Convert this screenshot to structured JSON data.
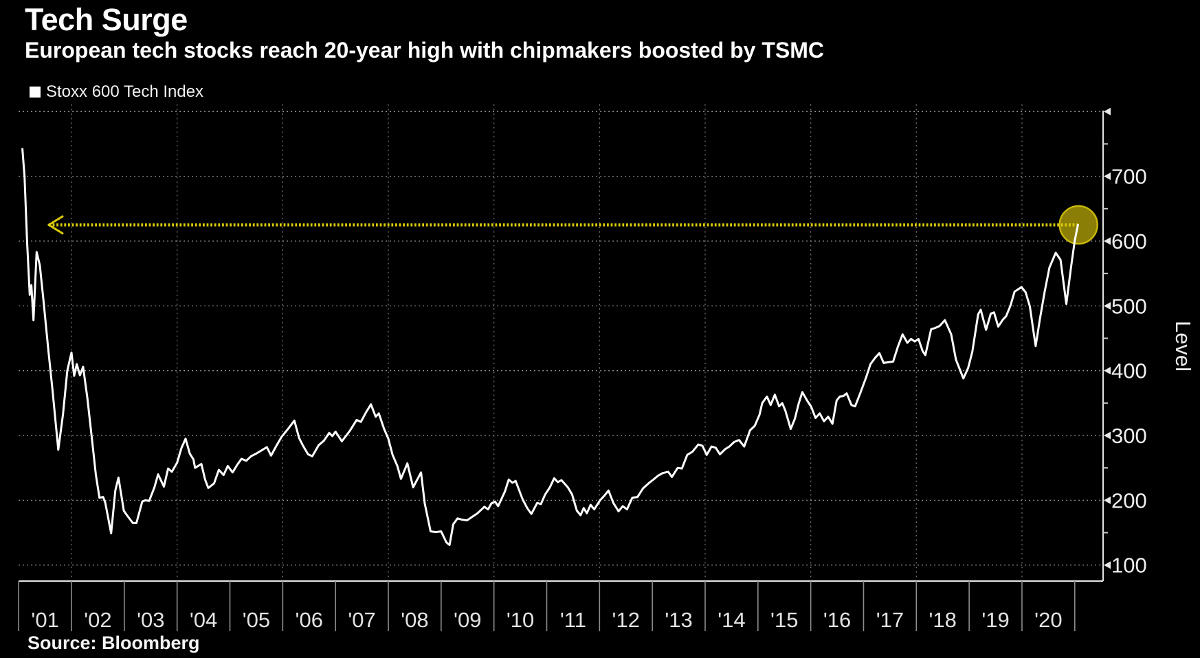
{
  "header": {
    "title": "Tech Surge",
    "subtitle": "European tech stocks reach 20-year high with chipmakers boosted by TSMC"
  },
  "legend": {
    "label": "Stoxx 600 Tech Index",
    "marker_color": "#ffffff"
  },
  "source": {
    "text": "Source: Bloomberg"
  },
  "colors": {
    "background": "#000000",
    "series_line": "#ffffff",
    "annotation_yellow": "#d9c908",
    "annotation_circle_fill": "#8b7e06",
    "annotation_circle_stroke": "#c9b90a",
    "grid": "#9a9a9a",
    "axis": "#e0e0e0"
  },
  "chart_data": {
    "type": "line",
    "title": "Tech Surge",
    "subtitle": "European tech stocks reach 20-year high with chipmakers boosted by TSMC",
    "ylabel": "Level",
    "xlabel": "",
    "grid": "dotted",
    "legend_position": "top-left",
    "x_axis_years_range": [
      2001.0,
      2021.55
    ],
    "ylim_value_at_axis": [
      75,
      800
    ],
    "y_major_ticks": [
      100,
      200,
      300,
      400,
      500,
      600,
      700
    ],
    "y_unlabeled_gridlines": [
      800
    ],
    "y_minor_ticks": [
      150,
      250,
      350,
      450,
      550,
      650,
      750
    ],
    "x_tick_labels": [
      "'01",
      "'02",
      "'03",
      "'04",
      "'05",
      "'06",
      "'07",
      "'08",
      "'09",
      "'10",
      "'11",
      "'12",
      "'13",
      "'14",
      "'15",
      "'16",
      "'17",
      "'18",
      "'19",
      "'20"
    ],
    "x_gridline_years": [
      2002,
      2004,
      2006,
      2008,
      2010,
      2012,
      2014,
      2016,
      2018,
      2020
    ],
    "annotation": {
      "description": "dotted arrow from latest value back to the 2001 level it last reached",
      "level": 625,
      "from_year": 2021.07,
      "tip_year": 2001.57,
      "marker": {
        "year": 2021.07,
        "value": 625,
        "radius_px": 27.5
      }
    },
    "series": [
      {
        "name": "Stoxx 600 Tech Index",
        "color": "#ffffff",
        "points": [
          [
            2001.07,
            742
          ],
          [
            2001.11,
            700
          ],
          [
            2001.16,
            597
          ],
          [
            2001.21,
            517
          ],
          [
            2001.24,
            532
          ],
          [
            2001.28,
            478
          ],
          [
            2001.34,
            583
          ],
          [
            2001.4,
            563
          ],
          [
            2001.47,
            508
          ],
          [
            2001.56,
            433
          ],
          [
            2001.64,
            370
          ],
          [
            2001.75,
            278
          ],
          [
            2001.84,
            333
          ],
          [
            2001.92,
            400
          ],
          [
            2002.0,
            428
          ],
          [
            2002.05,
            392
          ],
          [
            2002.1,
            410
          ],
          [
            2002.16,
            393
          ],
          [
            2002.22,
            406
          ],
          [
            2002.3,
            358
          ],
          [
            2002.38,
            300
          ],
          [
            2002.46,
            240
          ],
          [
            2002.53,
            204
          ],
          [
            2002.6,
            205
          ],
          [
            2002.64,
            196
          ],
          [
            2002.75,
            149
          ],
          [
            2002.83,
            215
          ],
          [
            2002.89,
            235
          ],
          [
            2002.99,
            184
          ],
          [
            2003.05,
            177
          ],
          [
            2003.16,
            165
          ],
          [
            2003.23,
            165
          ],
          [
            2003.34,
            198
          ],
          [
            2003.4,
            200
          ],
          [
            2003.47,
            199
          ],
          [
            2003.57,
            220
          ],
          [
            2003.64,
            240
          ],
          [
            2003.75,
            221
          ],
          [
            2003.83,
            249
          ],
          [
            2003.9,
            244
          ],
          [
            2004.0,
            258
          ],
          [
            2004.08,
            280
          ],
          [
            2004.16,
            295
          ],
          [
            2004.24,
            272
          ],
          [
            2004.31,
            263
          ],
          [
            2004.34,
            250
          ],
          [
            2004.46,
            256
          ],
          [
            2004.53,
            232
          ],
          [
            2004.59,
            219
          ],
          [
            2004.7,
            226
          ],
          [
            2004.79,
            247
          ],
          [
            2004.88,
            239
          ],
          [
            2004.96,
            253
          ],
          [
            2005.05,
            243
          ],
          [
            2005.14,
            255
          ],
          [
            2005.22,
            264
          ],
          [
            2005.31,
            261
          ],
          [
            2005.4,
            268
          ],
          [
            2005.5,
            272
          ],
          [
            2005.6,
            277
          ],
          [
            2005.7,
            282
          ],
          [
            2005.78,
            269
          ],
          [
            2005.88,
            284
          ],
          [
            2005.98,
            298
          ],
          [
            2006.1,
            310
          ],
          [
            2006.22,
            323
          ],
          [
            2006.31,
            296
          ],
          [
            2006.38,
            285
          ],
          [
            2006.48,
            271
          ],
          [
            2006.56,
            268
          ],
          [
            2006.68,
            285
          ],
          [
            2006.78,
            292
          ],
          [
            2006.88,
            304
          ],
          [
            2006.94,
            299
          ],
          [
            2007.0,
            306
          ],
          [
            2007.12,
            291
          ],
          [
            2007.27,
            307
          ],
          [
            2007.4,
            324
          ],
          [
            2007.48,
            321
          ],
          [
            2007.58,
            336
          ],
          [
            2007.67,
            348
          ],
          [
            2007.76,
            329
          ],
          [
            2007.82,
            334
          ],
          [
            2007.92,
            310
          ],
          [
            2008.0,
            295
          ],
          [
            2008.08,
            270
          ],
          [
            2008.17,
            253
          ],
          [
            2008.24,
            233
          ],
          [
            2008.36,
            257
          ],
          [
            2008.47,
            220
          ],
          [
            2008.62,
            243
          ],
          [
            2008.69,
            195
          ],
          [
            2008.8,
            152
          ],
          [
            2008.9,
            151
          ],
          [
            2009.0,
            152
          ],
          [
            2009.1,
            135
          ],
          [
            2009.16,
            131
          ],
          [
            2009.23,
            163
          ],
          [
            2009.31,
            172
          ],
          [
            2009.4,
            170
          ],
          [
            2009.49,
            169
          ],
          [
            2009.6,
            175
          ],
          [
            2009.69,
            180
          ],
          [
            2009.82,
            190
          ],
          [
            2009.89,
            186
          ],
          [
            2009.95,
            195
          ],
          [
            2010.02,
            198
          ],
          [
            2010.08,
            191
          ],
          [
            2010.21,
            214
          ],
          [
            2010.28,
            232
          ],
          [
            2010.35,
            227
          ],
          [
            2010.41,
            230
          ],
          [
            2010.54,
            202
          ],
          [
            2010.63,
            188
          ],
          [
            2010.71,
            179
          ],
          [
            2010.82,
            196
          ],
          [
            2010.89,
            194
          ],
          [
            2010.97,
            209
          ],
          [
            2011.06,
            220
          ],
          [
            2011.14,
            234
          ],
          [
            2011.21,
            228
          ],
          [
            2011.28,
            231
          ],
          [
            2011.4,
            220
          ],
          [
            2011.48,
            209
          ],
          [
            2011.57,
            184
          ],
          [
            2011.64,
            177
          ],
          [
            2011.7,
            188
          ],
          [
            2011.76,
            180
          ],
          [
            2011.83,
            193
          ],
          [
            2011.9,
            186
          ],
          [
            2012.01,
            200
          ],
          [
            2012.09,
            207
          ],
          [
            2012.17,
            215
          ],
          [
            2012.26,
            196
          ],
          [
            2012.36,
            183
          ],
          [
            2012.44,
            191
          ],
          [
            2012.52,
            186
          ],
          [
            2012.62,
            204
          ],
          [
            2012.72,
            205
          ],
          [
            2012.82,
            218
          ],
          [
            2012.94,
            227
          ],
          [
            2013.02,
            232
          ],
          [
            2013.11,
            238
          ],
          [
            2013.2,
            242
          ],
          [
            2013.3,
            244
          ],
          [
            2013.37,
            236
          ],
          [
            2013.48,
            250
          ],
          [
            2013.56,
            249
          ],
          [
            2013.66,
            270
          ],
          [
            2013.76,
            275
          ],
          [
            2013.87,
            286
          ],
          [
            2013.95,
            284
          ],
          [
            2014.03,
            270
          ],
          [
            2014.12,
            283
          ],
          [
            2014.2,
            281
          ],
          [
            2014.28,
            271
          ],
          [
            2014.38,
            279
          ],
          [
            2014.46,
            283
          ],
          [
            2014.55,
            290
          ],
          [
            2014.64,
            293
          ],
          [
            2014.74,
            283
          ],
          [
            2014.85,
            308
          ],
          [
            2014.94,
            315
          ],
          [
            2015.03,
            332
          ],
          [
            2015.08,
            350
          ],
          [
            2015.17,
            360
          ],
          [
            2015.24,
            347
          ],
          [
            2015.32,
            363
          ],
          [
            2015.4,
            345
          ],
          [
            2015.46,
            350
          ],
          [
            2015.52,
            338
          ],
          [
            2015.62,
            310
          ],
          [
            2015.7,
            326
          ],
          [
            2015.77,
            349
          ],
          [
            2015.84,
            367
          ],
          [
            2015.93,
            354
          ],
          [
            2016.01,
            344
          ],
          [
            2016.09,
            327
          ],
          [
            2016.17,
            334
          ],
          [
            2016.25,
            322
          ],
          [
            2016.33,
            329
          ],
          [
            2016.41,
            318
          ],
          [
            2016.49,
            354
          ],
          [
            2016.55,
            360
          ],
          [
            2016.62,
            361
          ],
          [
            2016.68,
            365
          ],
          [
            2016.77,
            347
          ],
          [
            2016.84,
            345
          ],
          [
            2016.94,
            366
          ],
          [
            2017.05,
            390
          ],
          [
            2017.13,
            410
          ],
          [
            2017.22,
            420
          ],
          [
            2017.3,
            427
          ],
          [
            2017.38,
            412
          ],
          [
            2017.47,
            413
          ],
          [
            2017.56,
            414
          ],
          [
            2017.65,
            437
          ],
          [
            2017.74,
            456
          ],
          [
            2017.83,
            443
          ],
          [
            2017.9,
            449
          ],
          [
            2017.97,
            445
          ],
          [
            2018.04,
            449
          ],
          [
            2018.12,
            430
          ],
          [
            2018.17,
            424
          ],
          [
            2018.28,
            464
          ],
          [
            2018.36,
            466
          ],
          [
            2018.44,
            469
          ],
          [
            2018.54,
            478
          ],
          [
            2018.66,
            456
          ],
          [
            2018.75,
            417
          ],
          [
            2018.89,
            388
          ],
          [
            2018.98,
            404
          ],
          [
            2019.06,
            429
          ],
          [
            2019.17,
            487
          ],
          [
            2019.22,
            494
          ],
          [
            2019.32,
            463
          ],
          [
            2019.41,
            488
          ],
          [
            2019.47,
            490
          ],
          [
            2019.55,
            468
          ],
          [
            2019.64,
            479
          ],
          [
            2019.7,
            484
          ],
          [
            2019.78,
            500
          ],
          [
            2019.86,
            522
          ],
          [
            2019.99,
            529
          ],
          [
            2020.07,
            521
          ],
          [
            2020.15,
            499
          ],
          [
            2020.21,
            465
          ],
          [
            2020.26,
            438
          ],
          [
            2020.34,
            480
          ],
          [
            2020.43,
            522
          ],
          [
            2020.52,
            559
          ],
          [
            2020.64,
            582
          ],
          [
            2020.73,
            571
          ],
          [
            2020.84,
            503
          ],
          [
            2020.93,
            560
          ],
          [
            2021.0,
            601
          ],
          [
            2021.06,
            625
          ]
        ]
      }
    ]
  }
}
